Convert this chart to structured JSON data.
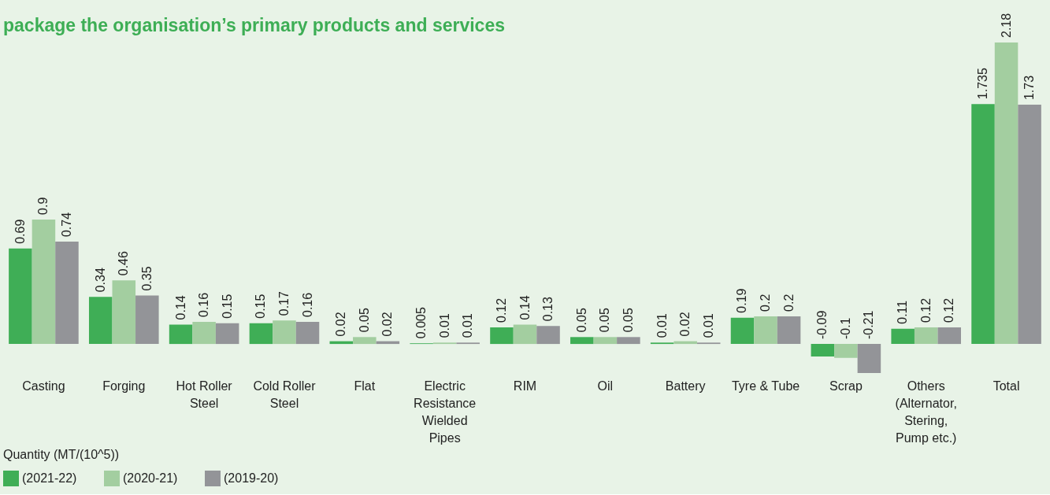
{
  "chart_data": {
    "type": "bar",
    "title": "package the organisation’s primary products and services",
    "categories": [
      "Casting",
      "Forging",
      "Hot Roller Steel",
      "Cold Roller Steel",
      "Flat",
      "Electric Resistance Wielded Pipes",
      "RIM",
      "Oil",
      "Battery",
      "Tyre & Tube",
      "Scrap",
      "Others (Alternator, Stering, Pump etc.)",
      "Total"
    ],
    "series": [
      {
        "name": "(2021-22)",
        "color": "#3fae56",
        "values": [
          0.69,
          0.34,
          0.14,
          0.15,
          0.02,
          0.005,
          0.12,
          0.05,
          0.01,
          0.19,
          -0.09,
          0.11,
          1.735
        ]
      },
      {
        "name": "(2020-21)",
        "color": "#a3cea0",
        "values": [
          0.9,
          0.46,
          0.16,
          0.17,
          0.05,
          0.01,
          0.14,
          0.05,
          0.02,
          0.2,
          -0.1,
          0.12,
          2.18
        ]
      },
      {
        "name": "(2019-20)",
        "color": "#939498",
        "values": [
          0.74,
          0.35,
          0.15,
          0.16,
          0.02,
          0.01,
          0.13,
          0.05,
          0.01,
          0.2,
          -0.21,
          0.12,
          1.73
        ]
      }
    ],
    "legend_title": "Quantity (MT/(10^5))",
    "legend": "bottom left",
    "data_labels": true,
    "grid": false
  }
}
